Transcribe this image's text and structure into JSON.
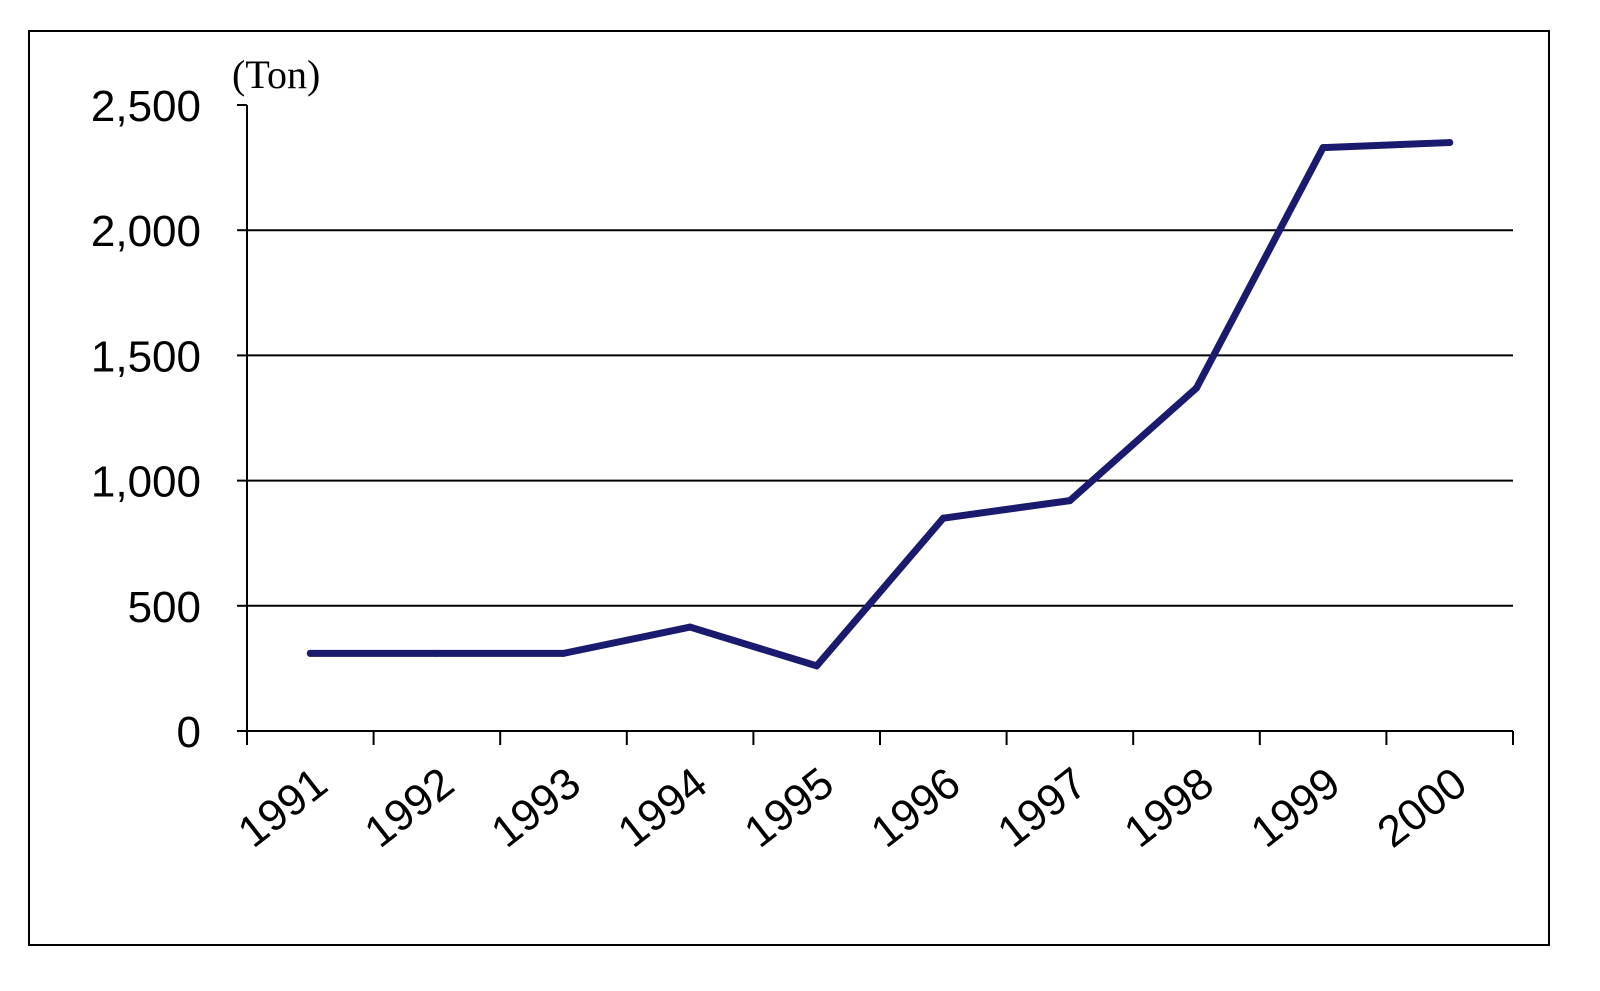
{
  "chart_data": {
    "type": "line",
    "title": "",
    "xlabel": "",
    "ylabel": "(Ton)",
    "ylim": [
      0,
      2500
    ],
    "yticks": [
      0,
      500,
      1000,
      1500,
      2000,
      2500
    ],
    "ytick_labels": [
      "0",
      "500",
      "1,000",
      "1,500",
      "2,000",
      "2,500"
    ],
    "categories": [
      "1991",
      "1992",
      "1993",
      "1994",
      "1995",
      "1996",
      "1997",
      "1998",
      "1999",
      "2000"
    ],
    "series": [
      {
        "values": [
          310,
          310,
          310,
          415,
          260,
          850,
          920,
          1370,
          2330,
          2350
        ],
        "color": "#1a1a6e"
      }
    ],
    "grid": "horizontal",
    "legend": "none"
  }
}
